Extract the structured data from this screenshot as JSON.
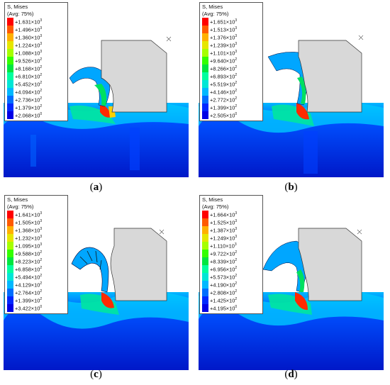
{
  "legend_colors": [
    "#ff0000",
    "#ff5a00",
    "#ffb000",
    "#e6e600",
    "#a6ff00",
    "#33ff00",
    "#00e640",
    "#00ff9e",
    "#00e6d6",
    "#00b8ff",
    "#006eff",
    "#0028ff",
    "#0000e6"
  ],
  "panels": [
    {
      "caption": "a",
      "legend": {
        "title": "S, Mises",
        "subtitle": "(Avg: 75%)",
        "values": [
          "+1.631×10",
          "+1.496×10",
          "+1.360×10",
          "+1.224×10",
          "+1.088×10",
          "+9.526×10",
          "+8.168×10",
          "+6.810×10",
          "+5.452×10",
          "+4.094×10",
          "+2.736×10",
          "+1.379×10",
          "+2.068×10"
        ],
        "exponents": [
          "3",
          "3",
          "3",
          "3",
          "3",
          "2",
          "2",
          "2",
          "2",
          "2",
          "2",
          "2",
          "0"
        ]
      }
    },
    {
      "caption": "b",
      "legend": {
        "title": "S, Mises",
        "subtitle": "(Avg: 75%)",
        "values": [
          "+1.651×10",
          "+1.513×10",
          "+1.376×10",
          "+1.239×10",
          "+1.101×10",
          "+9.640×10",
          "+8.266×10",
          "+6.893×10",
          "+5.519×10",
          "+4.146×10",
          "+2.772×10",
          "+1.399×10",
          "+2.505×10"
        ],
        "exponents": [
          "3",
          "3",
          "3",
          "3",
          "3",
          "2",
          "2",
          "2",
          "2",
          "2",
          "2",
          "2",
          "0"
        ]
      }
    },
    {
      "caption": "c",
      "legend": {
        "title": "S, Mises",
        "subtitle": "(Avg: 75%)",
        "values": [
          "+1.641×10",
          "+1.505×10",
          "+1.368×10",
          "+1.232×10",
          "+1.095×10",
          "+9.588×10",
          "+8.223×10",
          "+6.858×10",
          "+5.494×10",
          "+4.129×10",
          "+2.764×10",
          "+1.399×10",
          "+3.422×10"
        ],
        "exponents": [
          "3",
          "3",
          "3",
          "3",
          "3",
          "2",
          "2",
          "2",
          "2",
          "2",
          "2",
          "2",
          "0"
        ]
      }
    },
    {
      "caption": "d",
      "legend": {
        "title": "S, Mises",
        "subtitle": "(Avg: 75%)",
        "values": [
          "+1.664×10",
          "+1.525×10",
          "+1.387×10",
          "+1.249×10",
          "+1.110×10",
          "+9.722×10",
          "+8.339×10",
          "+6.956×10",
          "+5.573×10",
          "+4.190×10",
          "+2.808×10",
          "+1.425×10",
          "+4.195×10"
        ],
        "exponents": [
          "3",
          "3",
          "3",
          "3",
          "3",
          "2",
          "2",
          "2",
          "2",
          "2",
          "2",
          "2",
          "0"
        ]
      }
    }
  ]
}
